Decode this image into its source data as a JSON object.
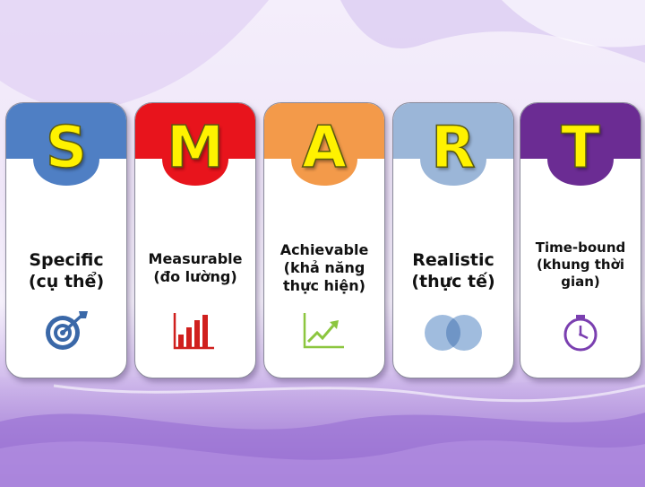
{
  "colors": {
    "specific": "#4f7fc4",
    "measurable": "#e8141c",
    "achievable": "#f39a4a",
    "realistic": "#9bb6d8",
    "timebound": "#6b2c93"
  },
  "cards": [
    {
      "letter": "S",
      "title": "Specific",
      "subtitle": "(cụ thể)",
      "subtitle2": "",
      "icon": "target-icon"
    },
    {
      "letter": "M",
      "title": "Measurable",
      "subtitle": "(đo lường)",
      "subtitle2": "",
      "icon": "bar-chart-icon"
    },
    {
      "letter": "A",
      "title": "Achievable",
      "subtitle": "(khả năng",
      "subtitle2": "thực hiện)",
      "icon": "trend-up-icon"
    },
    {
      "letter": "R",
      "title": "Realistic",
      "subtitle": "(thực tế)",
      "subtitle2": "",
      "icon": "overlap-circles-icon"
    },
    {
      "letter": "T",
      "title": "Time-bound",
      "subtitle": "(khung thời",
      "subtitle2": "gian)",
      "icon": "clock-icon"
    }
  ]
}
